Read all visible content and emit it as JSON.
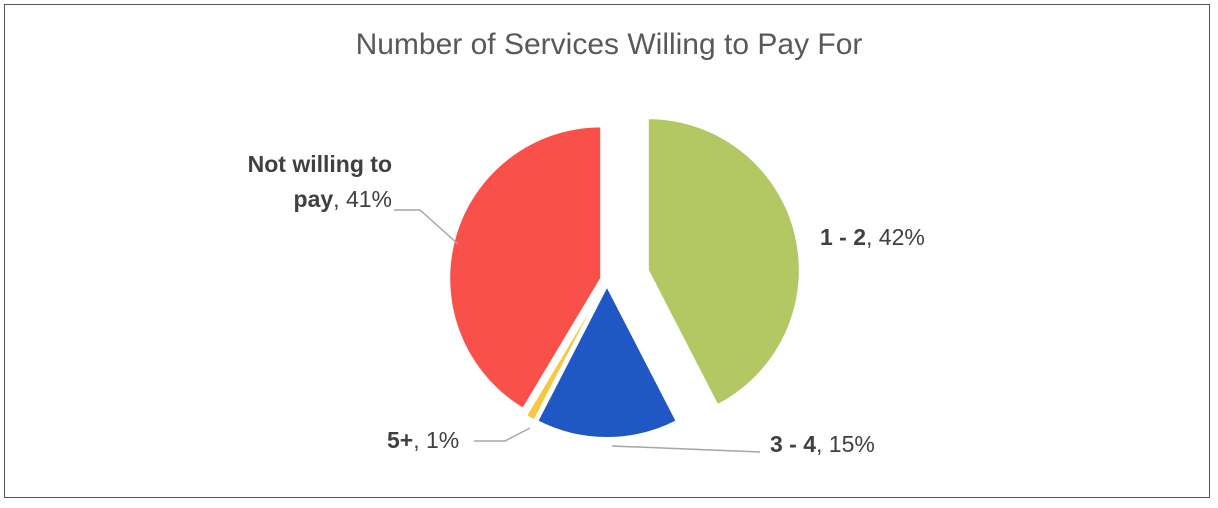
{
  "chart_data": {
    "type": "pie",
    "title": "Number of Services Willing to Pay For",
    "slices": [
      {
        "label": "1 - 2",
        "value": 42,
        "display": "42%",
        "color": "#b3c763"
      },
      {
        "label": "3 - 4",
        "value": 15,
        "display": "15%",
        "color": "#1f58c4"
      },
      {
        "label": "5+",
        "value": 1,
        "display": "1%",
        "color": "#f7c744"
      },
      {
        "label": "Not willing to pay",
        "label_lines": [
          "Not willing to",
          "pay"
        ],
        "value": 41,
        "display": "41%",
        "color": "#f9514a"
      }
    ],
    "start_angle_deg": 0,
    "direction": "clockwise",
    "exploded_slice": "1 - 2",
    "legend": "none",
    "data_labels": "category, percent"
  }
}
